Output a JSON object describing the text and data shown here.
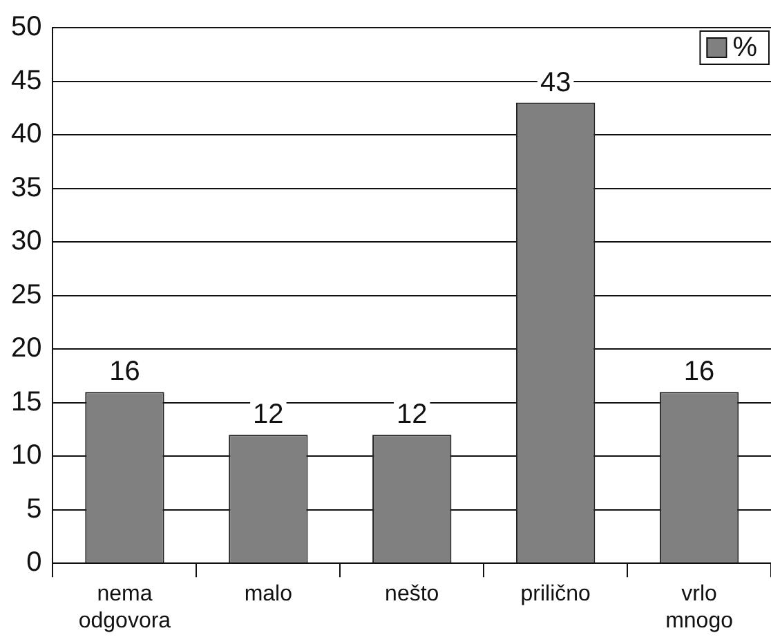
{
  "chart_data": {
    "type": "bar",
    "categories": [
      "nema odgovora",
      "malo",
      "nešto",
      "prilično",
      "vrlo mnogo"
    ],
    "series": [
      {
        "name": "%",
        "color": "#808080",
        "values": [
          16,
          12,
          12,
          43,
          16
        ]
      }
    ],
    "ylim": [
      0,
      50
    ],
    "yticks": [
      0,
      5,
      10,
      15,
      20,
      25,
      30,
      35,
      40,
      45,
      50
    ],
    "grid": "y",
    "legend": "top right",
    "data_labels": true
  }
}
